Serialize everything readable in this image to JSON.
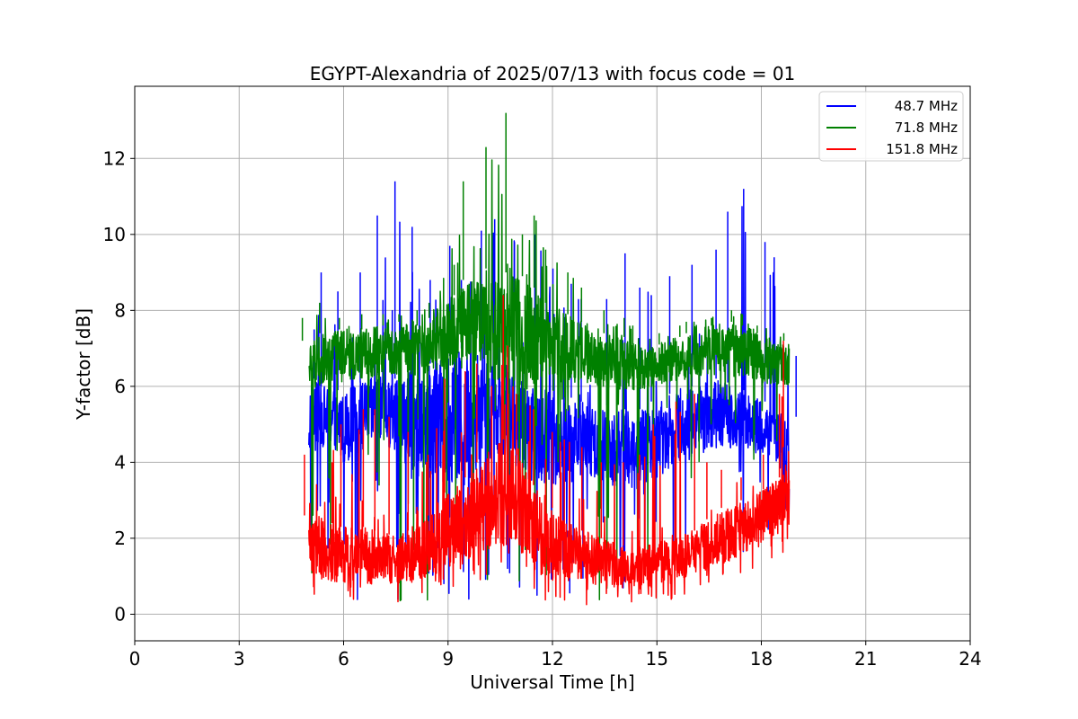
{
  "chart_data": {
    "type": "line",
    "title": "EGYPT-Alexandria of 2025/07/13 with focus code = 01",
    "xlabel": "Universal Time [h]",
    "ylabel": "Y-factor [dB]",
    "xlim": [
      0,
      24
    ],
    "ylim": [
      -0.7,
      13.9
    ],
    "xticks": [
      "0",
      "3",
      "6",
      "9",
      "12",
      "15",
      "18",
      "21",
      "24"
    ],
    "yticks": [
      "0",
      "2",
      "4",
      "6",
      "8",
      "10",
      "12"
    ],
    "grid": true,
    "legend_position": "top-right",
    "series": [
      {
        "name": "  48.7 MHz",
        "color": "#0000ff",
        "x": [
          5.0,
          5.5,
          6.0,
          6.5,
          7.0,
          7.5,
          8.0,
          8.5,
          9.0,
          9.5,
          10.0,
          10.5,
          11.0,
          11.5,
          12.0,
          12.5,
          13.0,
          13.5,
          14.0,
          14.5,
          15.0,
          15.5,
          16.0,
          16.5,
          17.0,
          17.5,
          18.0,
          18.5,
          18.8
        ],
        "upper": [
          7.5,
          9.0,
          8.5,
          9.0,
          10.5,
          11.4,
          10.2,
          8.8,
          9.7,
          8.8,
          10.1,
          10.4,
          9.8,
          10.0,
          9.1,
          8.7,
          8.3,
          8.3,
          9.5,
          8.6,
          8.4,
          8.9,
          9.2,
          9.6,
          10.6,
          11.2,
          9.8,
          9.4,
          6.8
        ],
        "mid_high": [
          6.2,
          6.0,
          5.9,
          6.1,
          6.3,
          6.2,
          6.4,
          6.6,
          6.8,
          7.0,
          7.0,
          6.6,
          6.2,
          5.9,
          5.9,
          5.7,
          5.6,
          5.5,
          5.4,
          5.4,
          5.6,
          5.8,
          6.0,
          6.2,
          6.1,
          5.9,
          5.6,
          5.3,
          5.2
        ],
        "mid_low": [
          4.0,
          4.5,
          4.0,
          4.2,
          4.5,
          4.2,
          3.8,
          3.4,
          3.5,
          3.2,
          3.8,
          4.3,
          3.6,
          3.5,
          3.4,
          3.4,
          3.5,
          3.4,
          3.3,
          3.3,
          3.6,
          3.9,
          4.1,
          4.3,
          4.4,
          4.3,
          4.2,
          4.0,
          2.0
        ],
        "lower": [
          0.5,
          0.4,
          0.3,
          0.3,
          0.2,
          0.1,
          0.1,
          0.2,
          0.3,
          0.2,
          0.1,
          0.2,
          0.2,
          0.3,
          0.3,
          0.4,
          0.2,
          0.1,
          0.2,
          0.1,
          0.5,
          0.7,
          0.8,
          1.0,
          1.2,
          1.5,
          1.8,
          1.9,
          1.9
        ]
      },
      {
        "name": "  71.8 MHz",
        "color": "#008000",
        "x": [
          5.0,
          5.5,
          6.0,
          6.5,
          7.0,
          7.5,
          8.0,
          8.5,
          9.0,
          9.5,
          10.0,
          10.5,
          11.0,
          11.5,
          12.0,
          12.5,
          13.0,
          13.5,
          14.0,
          14.5,
          15.0,
          15.5,
          16.0,
          16.5,
          17.0,
          17.5,
          18.0,
          18.5,
          18.8
        ],
        "upper": [
          7.8,
          8.2,
          7.8,
          7.9,
          7.9,
          7.9,
          8.0,
          8.2,
          9.2,
          11.4,
          12.3,
          13.2,
          10.0,
          10.5,
          9.6,
          9.0,
          8.6,
          8.0,
          7.8,
          7.6,
          7.4,
          7.6,
          7.7,
          7.8,
          8.0,
          7.9,
          7.6,
          7.4,
          7.1
        ],
        "mid_high": [
          7.2,
          7.4,
          7.5,
          7.5,
          7.6,
          7.7,
          7.6,
          7.8,
          8.4,
          8.8,
          9.1,
          9.0,
          8.9,
          8.6,
          8.2,
          7.9,
          7.7,
          7.4,
          7.3,
          7.1,
          7.1,
          7.3,
          7.4,
          7.6,
          7.7,
          7.6,
          7.4,
          7.2,
          7.0
        ],
        "mid_low": [
          5.9,
          6.1,
          6.1,
          6.2,
          6.2,
          6.3,
          6.3,
          6.3,
          6.4,
          6.5,
          6.4,
          6.0,
          5.7,
          6.0,
          6.1,
          6.1,
          6.0,
          5.9,
          5.9,
          5.9,
          6.0,
          6.1,
          6.2,
          6.3,
          6.3,
          6.2,
          6.1,
          6.0,
          6.0
        ],
        "lower": [
          0.5,
          0.3,
          0.2,
          0.2,
          0.1,
          0.1,
          0.2,
          0.4,
          0.5,
          0.6,
          0.6,
          0.8,
          0.7,
          0.5,
          0.6,
          0.5,
          0.4,
          0.3,
          0.5,
          0.6,
          1.8,
          2.2,
          2.8,
          3.2,
          3.6,
          3.8,
          3.8,
          4.2,
          4.5
        ]
      },
      {
        "name": "  151.8 MHz",
        "color": "#ff0000",
        "x": [
          5.0,
          5.5,
          6.0,
          6.5,
          7.0,
          7.5,
          8.0,
          8.5,
          9.0,
          9.5,
          10.0,
          10.5,
          11.0,
          11.5,
          12.0,
          12.5,
          13.0,
          13.5,
          14.0,
          14.5,
          15.0,
          15.5,
          16.0,
          16.5,
          17.0,
          17.5,
          18.0,
          18.5,
          18.8
        ],
        "upper": [
          4.2,
          4.0,
          5.0,
          5.4,
          5.4,
          5.2,
          4.8,
          4.2,
          6.2,
          6.4,
          6.6,
          8.4,
          5.8,
          5.4,
          4.8,
          4.6,
          4.4,
          4.0,
          4.0,
          4.2,
          5.0,
          5.6,
          5.8,
          4.0,
          3.8,
          3.6,
          4.2,
          5.8,
          7.2
        ],
        "mid_high": [
          2.6,
          2.4,
          2.3,
          2.3,
          2.2,
          2.1,
          2.2,
          2.6,
          3.2,
          3.6,
          4.0,
          4.6,
          4.2,
          3.4,
          2.8,
          2.4,
          2.2,
          2.0,
          1.8,
          1.8,
          1.9,
          2.0,
          2.2,
          2.5,
          2.8,
          3.0,
          3.3,
          3.6,
          4.4
        ],
        "mid_low": [
          0.9,
          0.9,
          0.8,
          0.8,
          0.8,
          0.8,
          0.9,
          1.0,
          1.2,
          1.4,
          1.6,
          1.8,
          1.4,
          1.1,
          0.9,
          0.8,
          0.8,
          0.7,
          0.7,
          0.7,
          0.8,
          0.9,
          1.0,
          1.2,
          1.4,
          1.6,
          1.9,
          2.1,
          2.3
        ],
        "lower": [
          0.3,
          0.3,
          0.2,
          0.3,
          0.2,
          0.2,
          0.2,
          0.3,
          0.4,
          0.5,
          0.6,
          0.5,
          0.4,
          0.3,
          0.3,
          0.3,
          0.2,
          0.1,
          0.2,
          0.2,
          0.3,
          0.4,
          0.5,
          0.6,
          0.7,
          0.9,
          1.1,
          1.3,
          1.7
        ]
      }
    ]
  }
}
